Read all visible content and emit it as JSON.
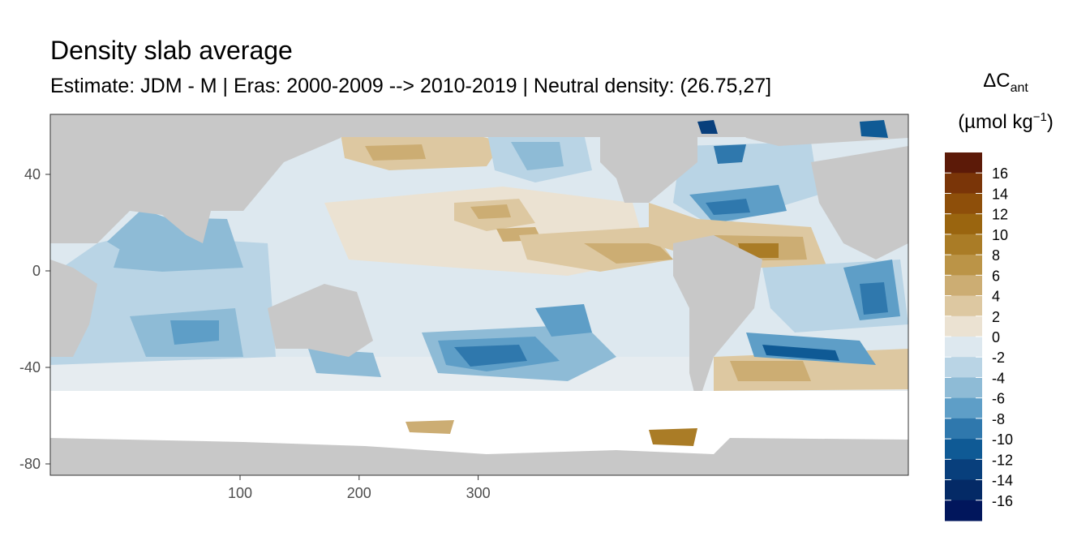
{
  "chart_data": {
    "type": "heatmap",
    "title": "Density slab average",
    "subtitle": "Estimate: JDM - M | Eras: 2000-2009 --> 2010-2019 | Neutral density: (26.75,27]",
    "xlabel": "",
    "ylabel": "",
    "x_ticks": [
      "100",
      "200",
      "300"
    ],
    "y_ticks": [
      "40",
      "0",
      "-40",
      "-80"
    ],
    "legend": {
      "title_main": "ΔC",
      "title_sub": "ant",
      "unit_prefix": "(µmol kg",
      "unit_sup": "−1",
      "unit_suffix": ")",
      "labels": [
        "16",
        "14",
        "12",
        "10",
        "8",
        "6",
        "4",
        "2",
        "0",
        "-2",
        "-4",
        "-6",
        "-8",
        "-10",
        "-12",
        "-14",
        "-16"
      ],
      "colors": [
        "#5c1a08",
        "#7a3508",
        "#8e4f0a",
        "#9a650f",
        "#aa7c26",
        "#bb9447",
        "#ccad73",
        "#ddc8a1",
        "#ebe2d2",
        "#dde8ef",
        "#b9d4e5",
        "#8ebbd6",
        "#5e9ec7",
        "#2f78ad",
        "#0f5a95",
        "#083f7c",
        "#042a66",
        "#01165c"
      ]
    },
    "grid": true,
    "panel_bg": "#ffffff",
    "land_color": "#c8c8c8"
  }
}
